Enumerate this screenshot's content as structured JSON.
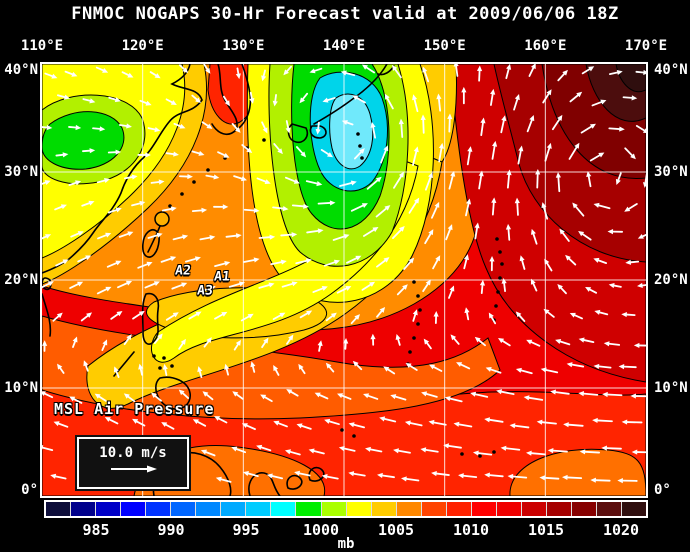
{
  "title": "FNMOC NOGAPS 30-Hr Forecast valid at 2009/06/06 18Z",
  "axes": {
    "top": [
      "110°E",
      "120°E",
      "130°E",
      "140°E",
      "150°E",
      "160°E",
      "170°E"
    ],
    "left": [
      "40°N",
      "30°N",
      "20°N",
      "10°N",
      "0°"
    ],
    "right": [
      "40°N",
      "30°N",
      "20°N",
      "10°N",
      "0°"
    ]
  },
  "overlay": {
    "field_label": "MSL Air Pressure",
    "wind_scale_label": "10.0 m/s",
    "storm_markers": [
      "A1",
      "A2",
      "A3"
    ]
  },
  "colorbar": {
    "units": "mb",
    "ticks": [
      "985",
      "990",
      "995",
      "1000",
      "1005",
      "1010",
      "1015",
      "1020"
    ],
    "colors": [
      "#0d0d3a",
      "#00008c",
      "#0000c8",
      "#0000ff",
      "#0033ff",
      "#0066ff",
      "#0088ff",
      "#00aaff",
      "#00ccff",
      "#00ffff",
      "#00ee00",
      "#aaff00",
      "#ffff00",
      "#ffcc00",
      "#ff8800",
      "#ff4400",
      "#ff2200",
      "#ff0000",
      "#f00000",
      "#cc0000",
      "#a60000",
      "#870000",
      "#5c0e0e",
      "#2f0e0e"
    ]
  },
  "chart_data": {
    "type": "heatmap",
    "title": "MSL Air Pressure",
    "units": "mb",
    "scale_tick_values": [
      985,
      990,
      995,
      1000,
      1005,
      1010,
      1015,
      1020
    ],
    "lon_range_deg_e": [
      110,
      170
    ],
    "lat_range_deg_n": [
      0,
      40
    ],
    "wind_reference_ms": 10.0,
    "features": [
      {
        "name": "low pressure center",
        "approx_lon_e": 137,
        "approx_lat_n": 33,
        "approx_value_mb": 994
      },
      {
        "name": "high pressure area",
        "approx_lon_e": 168,
        "approx_lat_n": 38,
        "approx_value_mb": 1022
      },
      {
        "name": "storm position markers",
        "labels": [
          "A1",
          "A2",
          "A3"
        ],
        "approx_lon_e": 124,
        "approx_lat_n": 21
      }
    ]
  }
}
